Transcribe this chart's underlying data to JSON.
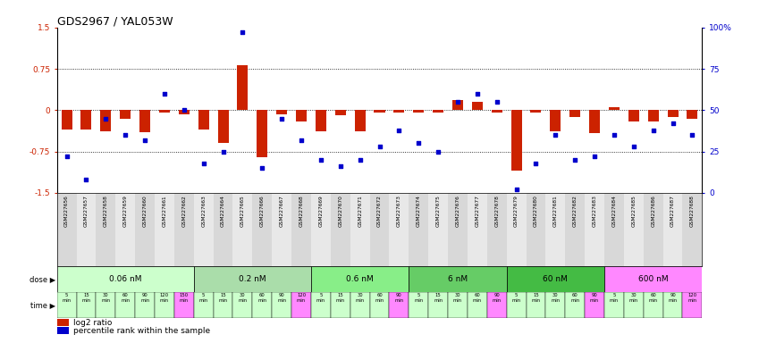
{
  "title": "GDS2967 / YAL053W",
  "samples": [
    "GSM227656",
    "GSM227657",
    "GSM227658",
    "GSM227659",
    "GSM227660",
    "GSM227661",
    "GSM227662",
    "GSM227663",
    "GSM227664",
    "GSM227665",
    "GSM227666",
    "GSM227667",
    "GSM227668",
    "GSM227669",
    "GSM227670",
    "GSM227671",
    "GSM227672",
    "GSM227673",
    "GSM227674",
    "GSM227675",
    "GSM227676",
    "GSM227677",
    "GSM227678",
    "GSM227679",
    "GSM227680",
    "GSM227681",
    "GSM227682",
    "GSM227683",
    "GSM227684",
    "GSM227685",
    "GSM227686",
    "GSM227687",
    "GSM227688"
  ],
  "log2_ratio": [
    -0.35,
    -0.35,
    -0.38,
    -0.15,
    -0.4,
    -0.05,
    -0.08,
    -0.35,
    -0.6,
    0.82,
    -0.85,
    -0.08,
    -0.2,
    -0.38,
    -0.1,
    -0.38,
    -0.05,
    -0.05,
    -0.05,
    -0.05,
    0.18,
    0.15,
    -0.05,
    -1.1,
    -0.05,
    -0.38,
    -0.12,
    -0.42,
    0.05,
    -0.2,
    -0.2,
    -0.12,
    -0.15
  ],
  "percentile": [
    22,
    8,
    45,
    35,
    32,
    60,
    50,
    18,
    25,
    97,
    15,
    45,
    32,
    20,
    16,
    20,
    28,
    38,
    30,
    25,
    55,
    60,
    55,
    2,
    18,
    35,
    20,
    22,
    35,
    28,
    38,
    42,
    35
  ],
  "dose_colors": [
    "#ccffcc",
    "#aaddaa",
    "#88ee88",
    "#66cc66",
    "#44bb44",
    "#ff88ff"
  ],
  "dose_labels": [
    "0.06 nM",
    "0.2 nM",
    "0.6 nM",
    "6 nM",
    "60 nM",
    "600 nM"
  ],
  "dose_ranges": [
    [
      0,
      6
    ],
    [
      7,
      12
    ],
    [
      13,
      17
    ],
    [
      18,
      22
    ],
    [
      23,
      27
    ],
    [
      28,
      32
    ]
  ],
  "time_labels": [
    "5\nmin",
    "15\nmin",
    "30\nmin",
    "60\nmin",
    "90\nmin",
    "120\nmin",
    "150\nmin",
    "5\nmin",
    "15\nmin",
    "30\nmin",
    "60\nmin",
    "90\nmin",
    "120\nmin",
    "5\nmin",
    "15\nmin",
    "30\nmin",
    "60\nmin",
    "90\nmin",
    "5\nmin",
    "15\nmin",
    "30\nmin",
    "60\nmin",
    "90\nmin",
    "5\nmin",
    "15\nmin",
    "30\nmin",
    "60\nmin",
    "90\nmin",
    "5\nmin",
    "30\nmin",
    "60\nmin",
    "90\nmin",
    "120\nmin"
  ],
  "time_colors": [
    "#ccffcc",
    "#ccffcc",
    "#ccffcc",
    "#ccffcc",
    "#ccffcc",
    "#ccffcc",
    "#ff88ff",
    "#ccffcc",
    "#ccffcc",
    "#ccffcc",
    "#ccffcc",
    "#ccffcc",
    "#ff88ff",
    "#ccffcc",
    "#ccffcc",
    "#ccffcc",
    "#ccffcc",
    "#ff88ff",
    "#ccffcc",
    "#ccffcc",
    "#ccffcc",
    "#ccffcc",
    "#ff88ff",
    "#ccffcc",
    "#ccffcc",
    "#ccffcc",
    "#ccffcc",
    "#ff88ff",
    "#ccffcc",
    "#ccffcc",
    "#ccffcc",
    "#ccffcc",
    "#ff88ff"
  ],
  "bar_color": "#cc2200",
  "dot_color": "#0000cc",
  "ylim": [
    -1.5,
    1.5
  ],
  "dotted_lines": [
    0.0,
    0.75,
    -0.75
  ],
  "left_yticks": [
    -0.75,
    0.0,
    0.75
  ],
  "left_ylabels": [
    "-0.75",
    "0",
    "0.75"
  ],
  "right_ytick_vals": [
    -1.5,
    -0.75,
    0.0,
    0.75,
    1.5
  ],
  "right_ylabels": [
    "0",
    "25",
    "50",
    "75",
    "100%"
  ]
}
